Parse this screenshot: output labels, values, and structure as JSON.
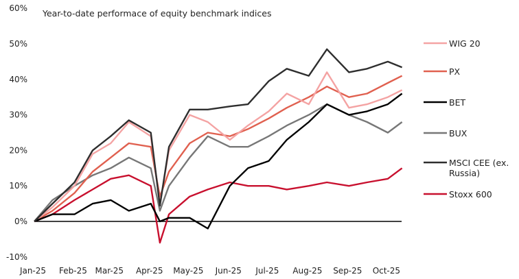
{
  "chart_data": {
    "type": "line",
    "title": "Year-to-date performace  of equity benchmark  indices",
    "xlabel": "",
    "ylabel": "",
    "ylim": [
      -10,
      60
    ],
    "yticks": [
      "60%",
      "50%",
      "40%",
      "30%",
      "20%",
      "10%",
      "0%",
      "-10%"
    ],
    "ytick_values": [
      60,
      50,
      40,
      30,
      20,
      10,
      0,
      -10
    ],
    "xticks": [
      {
        "label": "Jan-25",
        "date": "2025-01-01"
      },
      {
        "label": "Feb-25",
        "date": "2025-02-01"
      },
      {
        "label": "Mar-25",
        "date": "2025-03-01"
      },
      {
        "label": "Apr-25",
        "date": "2025-04-01"
      },
      {
        "label": "May-25",
        "date": "2025-05-01"
      },
      {
        "label": "Jun-25",
        "date": "2025-06-01"
      },
      {
        "label": "Jul-25",
        "date": "2025-07-01"
      },
      {
        "label": "Aug-25",
        "date": "2025-08-01"
      },
      {
        "label": "Sep-25",
        "date": "2025-09-01"
      },
      {
        "label": "Oct-25",
        "date": "2025-10-01"
      }
    ],
    "grid": false,
    "legend_placement": "right",
    "x": [
      "2025-01-01",
      "2025-01-15",
      "2025-02-01",
      "2025-02-15",
      "2025-03-01",
      "2025-03-15",
      "2025-04-01",
      "2025-04-08",
      "2025-04-15",
      "2025-05-01",
      "2025-05-15",
      "2025-06-01",
      "2025-06-15",
      "2025-07-01",
      "2025-07-15",
      "2025-08-01",
      "2025-08-15",
      "2025-09-01",
      "2025-09-15",
      "2025-10-01",
      "2025-10-12"
    ],
    "series": [
      {
        "name": "WIG 20",
        "color": "#f4a3a3",
        "values": [
          0,
          4,
          10,
          19,
          22,
          28,
          24,
          5,
          20,
          30,
          28,
          23,
          27,
          31,
          36,
          33,
          42,
          32,
          33,
          35,
          37
        ]
      },
      {
        "name": "PX",
        "color": "#e0604f",
        "values": [
          0,
          3,
          8,
          14,
          18,
          22,
          21,
          7,
          14,
          22,
          25,
          24,
          26,
          29,
          32,
          35,
          38,
          35,
          36,
          39,
          41
        ]
      },
      {
        "name": "BET",
        "color": "#000000",
        "values": [
          0,
          2,
          2,
          5,
          6,
          3,
          5,
          0,
          1,
          1,
          -2,
          10,
          15,
          17,
          23,
          28,
          33,
          30,
          31,
          33,
          36
        ]
      },
      {
        "name": "BUX",
        "color": "#777777",
        "values": [
          0,
          6,
          10,
          13,
          15,
          18,
          15,
          3,
          10,
          18,
          24,
          21,
          21,
          24,
          27,
          30,
          33,
          30,
          28,
          25,
          28
        ]
      },
      {
        "name": "MSCI CEE (ex. Russia)",
        "color": "#2e2e2e",
        "values": [
          0,
          5,
          11,
          20,
          24,
          28.5,
          25,
          4.4,
          21,
          31.5,
          31.5,
          32.4,
          33,
          39.5,
          43,
          41,
          48.5,
          42,
          43,
          45,
          43.4
        ]
      },
      {
        "name": "Stoxx 600",
        "color": "#c8102e",
        "values": [
          0,
          2,
          6,
          9,
          12,
          13,
          10,
          -6,
          2,
          7,
          9,
          11,
          10,
          10,
          9,
          10,
          11,
          10,
          11,
          12,
          15
        ]
      }
    ]
  }
}
